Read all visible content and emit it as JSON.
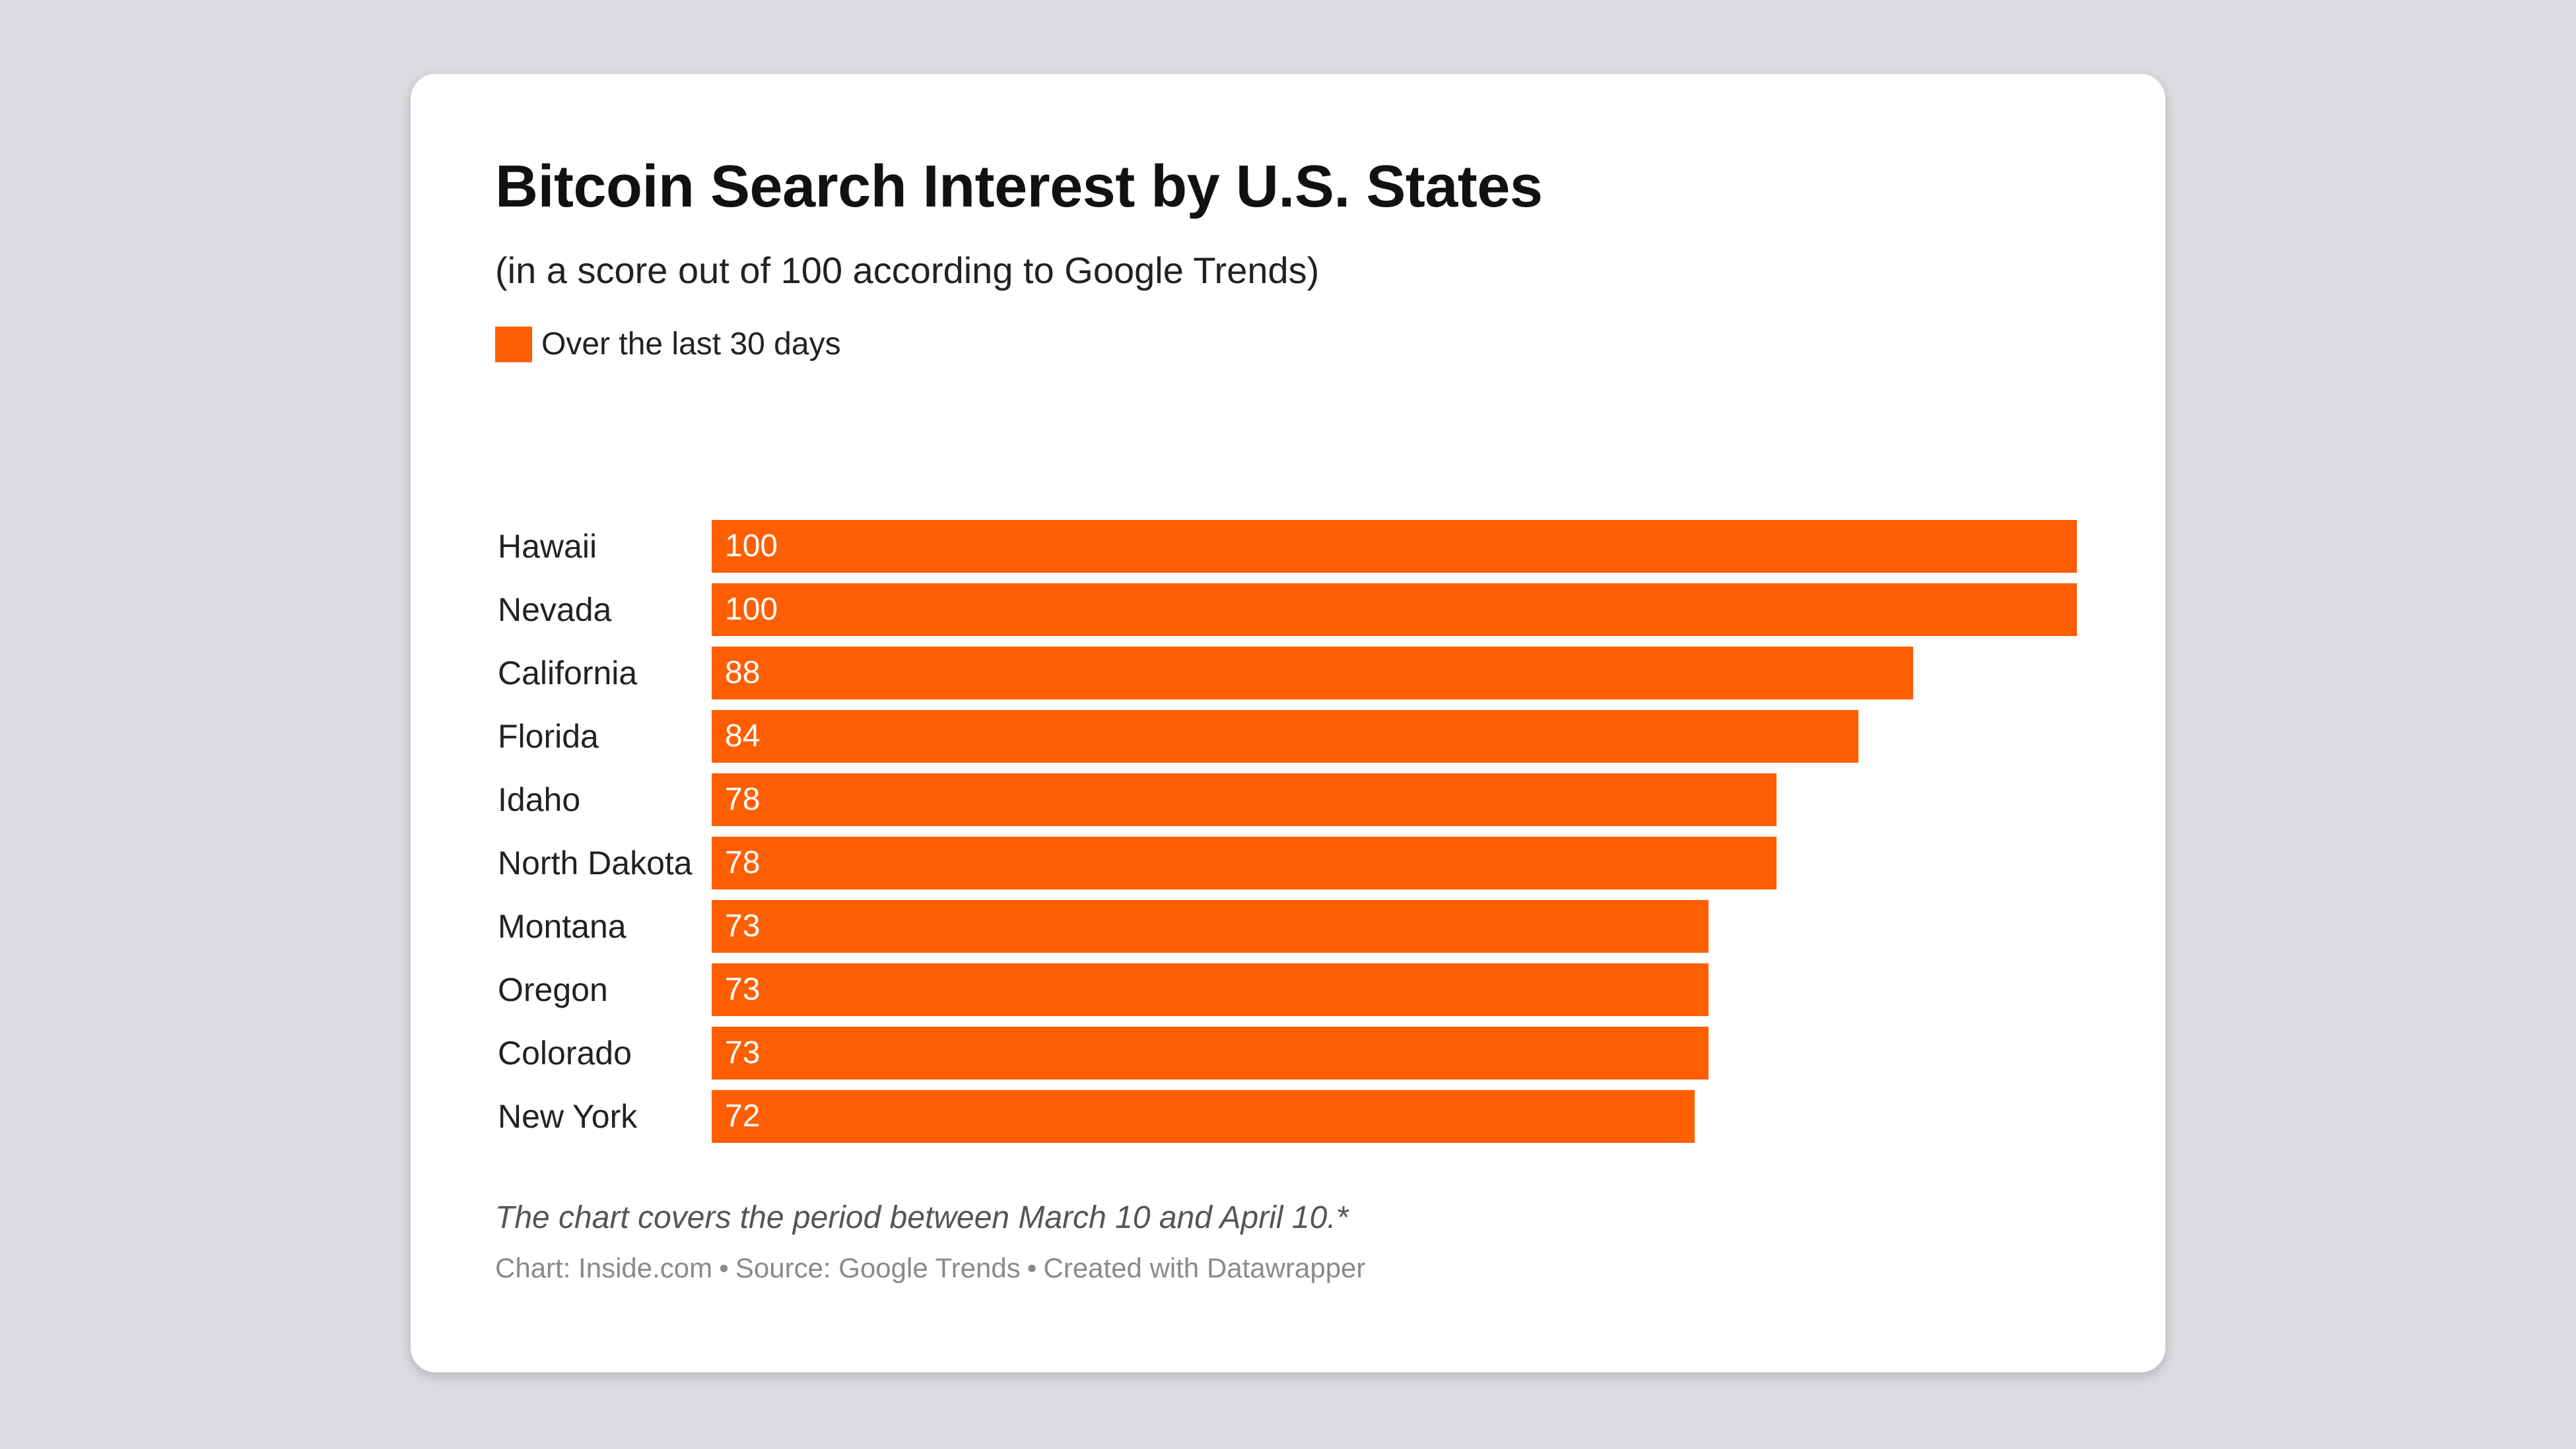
{
  "colors": {
    "background": "#dcdce0",
    "card": "#ffffff",
    "bar": "#ff5f00"
  },
  "chart_data": {
    "type": "bar",
    "orientation": "horizontal",
    "title": "Bitcoin Search Interest by U.S. States",
    "subtitle": "(in a score out of 100 according to Google Trends)",
    "legend": {
      "placement": "top-left",
      "entries": [
        {
          "label": "Over the last 30 days",
          "color": "#ff5f00"
        }
      ]
    },
    "categories": [
      "Hawaii",
      "Nevada",
      "California",
      "Florida",
      "Idaho",
      "North Dakota",
      "Montana",
      "Oregon",
      "Colorado",
      "New York"
    ],
    "series": [
      {
        "name": "Over the last 30 days",
        "values": [
          100,
          100,
          88,
          84,
          78,
          78,
          73,
          73,
          73,
          72
        ]
      }
    ],
    "xlim": [
      0,
      100
    ],
    "grid": false,
    "data_labels": true
  },
  "footer": {
    "note": "The chart covers the period between March 10 and April 10.*",
    "credit_chart": "Chart: Inside.com",
    "credit_source": "Source: Google Trends",
    "credit_tool": "Created with Datawrapper",
    "separator": "•"
  }
}
